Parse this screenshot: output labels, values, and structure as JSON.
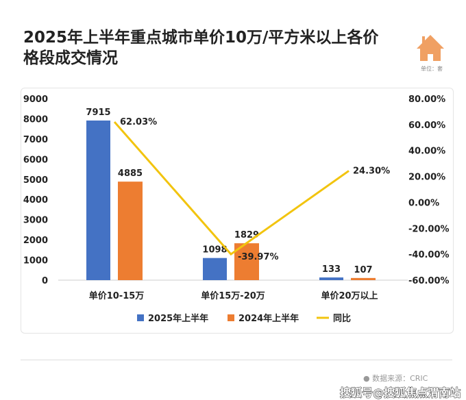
{
  "title": "2025年上半年重点城市单价10万/平方米以上各价格段成交情况",
  "unit": "单位：套",
  "source": "● 数据来源：CRIC",
  "watermark": "搜狐号@搜狐焦点渭南站",
  "chart_data": {
    "type": "bar",
    "categories": [
      "单价10-15万",
      "单价15万-20万",
      "单价20万以上"
    ],
    "series": [
      {
        "name": "2025年上半年",
        "values": [
          7915,
          1098,
          133
        ],
        "color": "#4472c4"
      },
      {
        "name": "2024年上半年",
        "values": [
          4885,
          1829,
          107
        ],
        "color": "#ed7d31"
      },
      {
        "name": "同比",
        "type": "line",
        "axis": "right",
        "values": [
          62.03,
          -39.97,
          24.3
        ],
        "labels": [
          "62.03%",
          "-39.97%",
          "24.30%"
        ],
        "color": "#f2c40f"
      }
    ],
    "ylim": [
      0,
      9000
    ],
    "yticks": [
      0,
      1000,
      2000,
      3000,
      4000,
      5000,
      6000,
      7000,
      8000,
      9000
    ],
    "y2lim": [
      -60,
      80
    ],
    "y2ticks": [
      "-60.00%",
      "-40.00%",
      "-20.00%",
      "0.00%",
      "20.00%",
      "40.00%",
      "60.00%",
      "80.00%"
    ],
    "legend": "bottom"
  }
}
